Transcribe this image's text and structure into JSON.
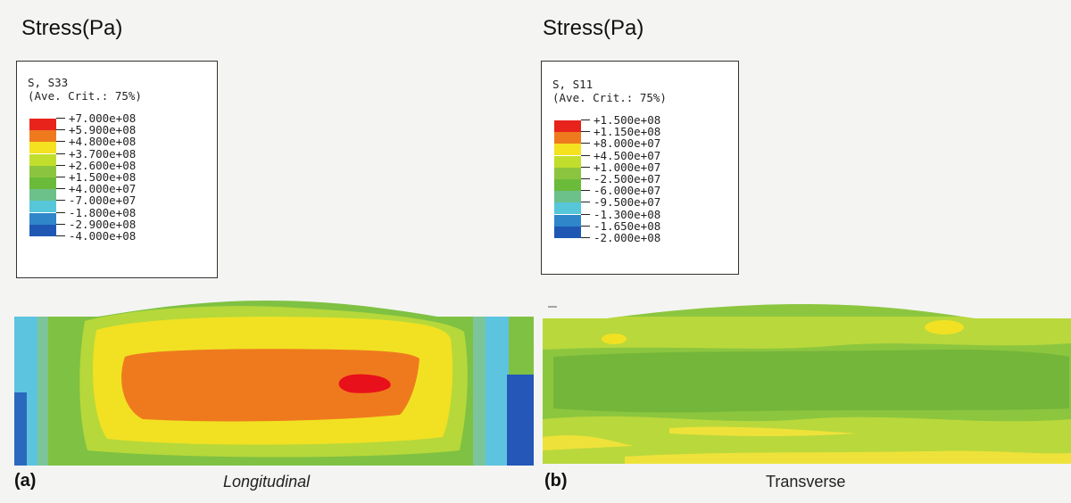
{
  "panels": [
    {
      "title": "Stress(Pa)",
      "legend": {
        "header_line1": "S, S33",
        "header_line2": "(Ave. Crit.: 75%)",
        "entries": [
          {
            "value": "+7.000e+08",
            "color": "#e8231c"
          },
          {
            "value": "+5.900e+08",
            "color": "#ef7a1e"
          },
          {
            "value": "+4.800e+08",
            "color": "#f4e120"
          },
          {
            "value": "+3.700e+08",
            "color": "#c2de2c"
          },
          {
            "value": "+2.600e+08",
            "color": "#8bc53f"
          },
          {
            "value": "+1.500e+08",
            "color": "#6bbb3a"
          },
          {
            "value": "+4.000e+07",
            "color": "#6cc08a"
          },
          {
            "value": "-7.000e+07",
            "color": "#56c7d9"
          },
          {
            "value": "-1.800e+08",
            "color": "#2f86c9"
          },
          {
            "value": "-2.900e+08",
            "color": "#1f58b4"
          },
          {
            "value": "-4.000e+08",
            "color": ""
          }
        ]
      },
      "letter": "(a)",
      "caption": "Longitudinal"
    },
    {
      "title": "Stress(Pa)",
      "legend": {
        "header_line1": "S, S11",
        "header_line2": "(Ave. Crit.: 75%)",
        "entries": [
          {
            "value": "+1.500e+08",
            "color": "#e8231c"
          },
          {
            "value": "+1.150e+08",
            "color": "#ef7a1e"
          },
          {
            "value": "+8.000e+07",
            "color": "#f4e120"
          },
          {
            "value": "+4.500e+07",
            "color": "#c2de2c"
          },
          {
            "value": "+1.000e+07",
            "color": "#8bc53f"
          },
          {
            "value": "-2.500e+07",
            "color": "#6bbb3a"
          },
          {
            "value": "-6.000e+07",
            "color": "#6cc08a"
          },
          {
            "value": "-9.500e+07",
            "color": "#56c7d9"
          },
          {
            "value": "-1.300e+08",
            "color": "#2f86c9"
          },
          {
            "value": "-1.650e+08",
            "color": "#1f58b4"
          },
          {
            "value": "-2.000e+08",
            "color": ""
          }
        ]
      },
      "letter": "(b)",
      "caption": "Transverse"
    }
  ]
}
